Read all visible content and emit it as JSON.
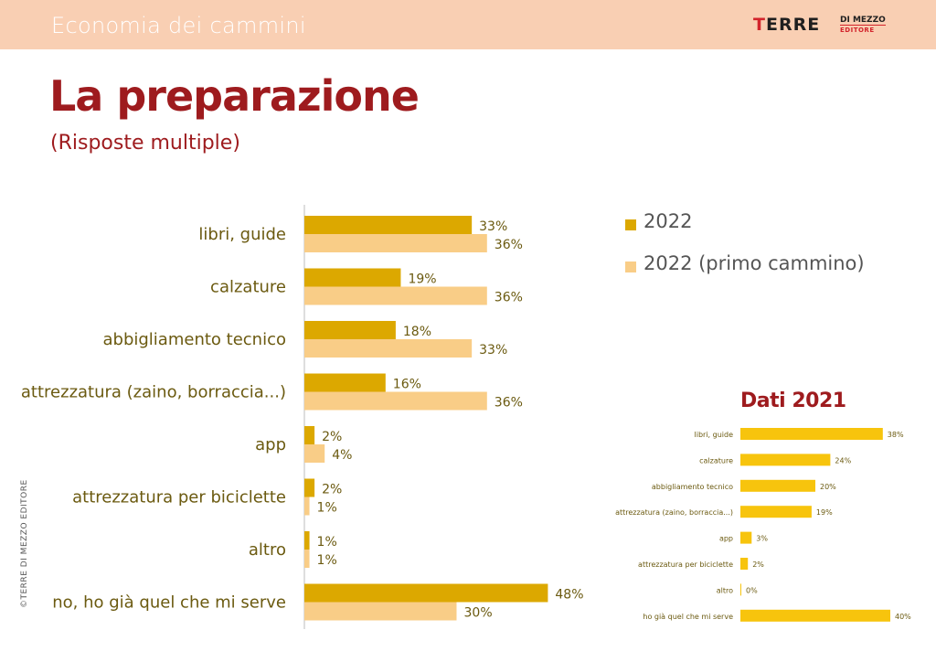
{
  "header": {
    "section_title": "Economia dei cammini",
    "logo_main_red": "T",
    "logo_main_rest": "ERRE",
    "logo_sub1": "DI MEZZO",
    "logo_sub2": "EDITORE"
  },
  "page": {
    "title": "La preparazione",
    "subtitle": "(Risposte multiple)",
    "copyright": "©TERRE DI MEZZO EDITORE"
  },
  "colors": {
    "series_2022": "#dca800",
    "series_primo": "#f9cd87",
    "inset_bar": "#f7c40d",
    "title_red": "#9e1b1e",
    "header_bg": "#f9cfb3",
    "label_text": "#6b5a10"
  },
  "legend": {
    "items": [
      "2022",
      "2022 (primo cammino)"
    ]
  },
  "chart_data": [
    {
      "type": "bar",
      "orientation": "horizontal",
      "categories": [
        "libri, guide",
        "calzature",
        "abbigliamento tecnico",
        "attrezzatura (zaino, borraccia...)",
        "app",
        "attrezzatura per biciclette",
        "altro",
        "no, ho già quel che mi serve"
      ],
      "series": [
        {
          "name": "2022",
          "values": [
            33,
            19,
            18,
            16,
            2,
            2,
            1,
            48
          ]
        },
        {
          "name": "2022 (primo cammino)",
          "values": [
            36,
            36,
            33,
            36,
            4,
            1,
            1,
            30
          ]
        }
      ],
      "value_suffix": "%",
      "legend": "right",
      "grid": false
    },
    {
      "type": "bar",
      "orientation": "horizontal",
      "title": "Dati 2021",
      "categories": [
        "libri, guide",
        "calzature",
        "abbigliamento tecnico",
        "attrezzatura (zaino, borraccia...)",
        "app",
        "attrezzatura per biciclette",
        "altro",
        "ho già quel che mi serve"
      ],
      "values": [
        38,
        24,
        20,
        19,
        3,
        2,
        0,
        40
      ],
      "value_suffix": "%",
      "grid": false
    }
  ]
}
